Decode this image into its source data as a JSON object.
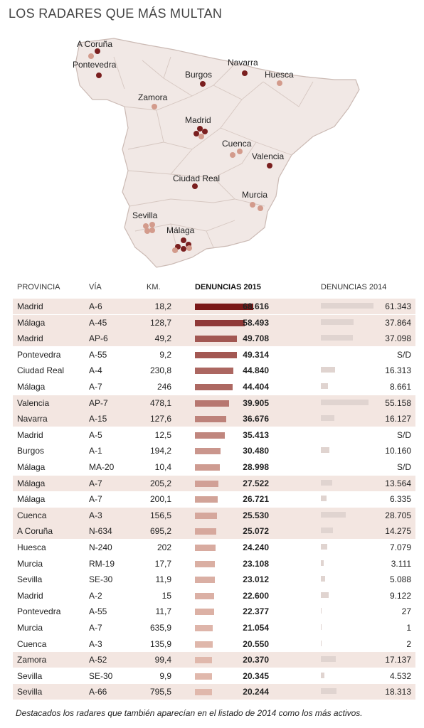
{
  "title": "LOS RADARES QUE MÁS MULTAN",
  "map": {
    "labels": [
      {
        "name": "A Coruña"
      },
      {
        "name": "Pontevedra"
      },
      {
        "name": "Navarra"
      },
      {
        "name": "Burgos"
      },
      {
        "name": "Huesca"
      },
      {
        "name": "Zamora"
      },
      {
        "name": "Madrid"
      },
      {
        "name": "Cuenca"
      },
      {
        "name": "Valencia"
      },
      {
        "name": "Ciudad Real"
      },
      {
        "name": "Murcia"
      },
      {
        "name": "Sevilla"
      },
      {
        "name": "Málaga"
      }
    ],
    "colors": {
      "land": "#f1e8e5",
      "border": "#cbbab4",
      "dot_dark": "#7a1f1f",
      "dot_light": "#d39b8c"
    }
  },
  "table": {
    "headers": {
      "provincia": "PROVINCIA",
      "via": "VÍA",
      "km": "KM.",
      "d2015": "DENUNCIAS 2015",
      "d2014": "DENUNCIAS 2014"
    }
  },
  "chart_data": {
    "type": "table",
    "series": [
      {
        "name": "DENUNCIAS 2015",
        "color_scale": [
          "#7a1818",
          "#e0b8ac"
        ]
      },
      {
        "name": "DENUNCIAS 2014",
        "color": "#e0d4d0"
      }
    ],
    "rows": [
      {
        "provincia": "Madrid",
        "via": "A-6",
        "km": "18,2",
        "d2015": 68616,
        "d2015_label": "68.616",
        "d2014": 61343,
        "d2014_label": "61.343",
        "highlight": true
      },
      {
        "provincia": "Málaga",
        "via": "A-45",
        "km": "128,7",
        "d2015": 58493,
        "d2015_label": "58.493",
        "d2014": 37864,
        "d2014_label": "37.864",
        "highlight": true
      },
      {
        "provincia": "Madrid",
        "via": "AP-6",
        "km": "49,2",
        "d2015": 49708,
        "d2015_label": "49.708",
        "d2014": 37098,
        "d2014_label": "37.098",
        "highlight": true
      },
      {
        "provincia": "Pontevedra",
        "via": "A-55",
        "km": "9,2",
        "d2015": 49314,
        "d2015_label": "49.314",
        "d2014": null,
        "d2014_label": "S/D",
        "highlight": false
      },
      {
        "provincia": "Ciudad Real",
        "via": "A-4",
        "km": "230,8",
        "d2015": 44840,
        "d2015_label": "44.840",
        "d2014": 16313,
        "d2014_label": "16.313",
        "highlight": false
      },
      {
        "provincia": "Málaga",
        "via": "A-7",
        "km": "246",
        "d2015": 44404,
        "d2015_label": "44.404",
        "d2014": 8661,
        "d2014_label": "8.661",
        "highlight": false
      },
      {
        "provincia": "Valencia",
        "via": "AP-7",
        "km": "478,1",
        "d2015": 39905,
        "d2015_label": "39.905",
        "d2014": 55158,
        "d2014_label": "55.158",
        "highlight": true
      },
      {
        "provincia": "Navarra",
        "via": "A-15",
        "km": "127,6",
        "d2015": 36676,
        "d2015_label": "36.676",
        "d2014": 16127,
        "d2014_label": "16.127",
        "highlight": true
      },
      {
        "provincia": "Madrid",
        "via": "A-5",
        "km": "12,5",
        "d2015": 35413,
        "d2015_label": "35.413",
        "d2014": null,
        "d2014_label": "S/D",
        "highlight": false
      },
      {
        "provincia": "Burgos",
        "via": "A-1",
        "km": "194,2",
        "d2015": 30480,
        "d2015_label": "30.480",
        "d2014": 10160,
        "d2014_label": "10.160",
        "highlight": false
      },
      {
        "provincia": "Málaga",
        "via": "MA-20",
        "km": "10,4",
        "d2015": 28998,
        "d2015_label": "28.998",
        "d2014": null,
        "d2014_label": "S/D",
        "highlight": false
      },
      {
        "provincia": "Málaga",
        "via": "A-7",
        "km": "205,2",
        "d2015": 27522,
        "d2015_label": "27.522",
        "d2014": 13564,
        "d2014_label": "13.564",
        "highlight": true
      },
      {
        "provincia": "Málaga",
        "via": "A-7",
        "km": "200,1",
        "d2015": 26721,
        "d2015_label": "26.721",
        "d2014": 6335,
        "d2014_label": "6.335",
        "highlight": false
      },
      {
        "provincia": "Cuenca",
        "via": "A-3",
        "km": "156,5",
        "d2015": 25530,
        "d2015_label": "25.530",
        "d2014": 28705,
        "d2014_label": "28.705",
        "highlight": true
      },
      {
        "provincia": "A Coruña",
        "via": "N-634",
        "km": "695,2",
        "d2015": 25072,
        "d2015_label": "25.072",
        "d2014": 14275,
        "d2014_label": "14.275",
        "highlight": true
      },
      {
        "provincia": "Huesca",
        "via": "N-240",
        "km": "202",
        "d2015": 24240,
        "d2015_label": "24.240",
        "d2014": 7079,
        "d2014_label": "7.079",
        "highlight": false
      },
      {
        "provincia": "Murcia",
        "via": "RM-19",
        "km": "17,7",
        "d2015": 23108,
        "d2015_label": "23.108",
        "d2014": 3111,
        "d2014_label": "3.111",
        "highlight": false
      },
      {
        "provincia": "Sevilla",
        "via": "SE-30",
        "km": "11,9",
        "d2015": 23012,
        "d2015_label": "23.012",
        "d2014": 5088,
        "d2014_label": "5.088",
        "highlight": false
      },
      {
        "provincia": "Madrid",
        "via": "A-2",
        "km": "15",
        "d2015": 22600,
        "d2015_label": "22.600",
        "d2014": 9122,
        "d2014_label": "9.122",
        "highlight": false
      },
      {
        "provincia": "Pontevedra",
        "via": "A-55",
        "km": "11,7",
        "d2015": 22377,
        "d2015_label": "22.377",
        "d2014": 27,
        "d2014_label": "27",
        "highlight": false
      },
      {
        "provincia": "Murcia",
        "via": "A-7",
        "km": "635,9",
        "d2015": 21054,
        "d2015_label": "21.054",
        "d2014": 1,
        "d2014_label": "1",
        "highlight": false
      },
      {
        "provincia": "Cuenca",
        "via": "A-3",
        "km": "135,9",
        "d2015": 20550,
        "d2015_label": "20.550",
        "d2014": 2,
        "d2014_label": "2",
        "highlight": false
      },
      {
        "provincia": "Zamora",
        "via": "A-52",
        "km": "99,4",
        "d2015": 20370,
        "d2015_label": "20.370",
        "d2014": 17137,
        "d2014_label": "17.137",
        "highlight": true
      },
      {
        "provincia": "Sevilla",
        "via": "SE-30",
        "km": "9,9",
        "d2015": 20345,
        "d2015_label": "20.345",
        "d2014": 4532,
        "d2014_label": "4.532",
        "highlight": false
      },
      {
        "provincia": "Sevilla",
        "via": "A-66",
        "km": "795,5",
        "d2015": 20244,
        "d2015_label": "20.244",
        "d2014": 18313,
        "d2014_label": "18.313",
        "highlight": true
      }
    ],
    "max2015": 68616,
    "max2014": 61343
  },
  "footnote": "Destacados los radares que también aparecían en el listado de 2014 como los más activos."
}
